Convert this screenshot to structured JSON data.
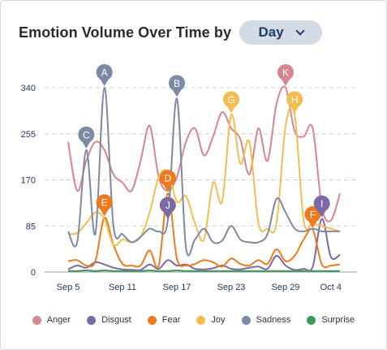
{
  "header": {
    "title": "Emotion Volume Over Time by",
    "dropdown_value": "Day"
  },
  "chart_data": {
    "type": "line",
    "xlabel": "",
    "ylabel": "",
    "x_start": "Sep 5",
    "x_end": "Oct 5",
    "x_ticks": [
      "Sep 5",
      "Sep 11",
      "Sep 17",
      "Sep 23",
      "Sep 29",
      "Oct 4"
    ],
    "y_ticks": [
      0,
      85,
      170,
      255,
      340
    ],
    "ylim": [
      0,
      340
    ],
    "grid": "horizontal dashed",
    "legend_position": "bottom",
    "x": [
      "Sep 5",
      "Sep 6",
      "Sep 7",
      "Sep 8",
      "Sep 9",
      "Sep 10",
      "Sep 11",
      "Sep 12",
      "Sep 13",
      "Sep 14",
      "Sep 15",
      "Sep 16",
      "Sep 17",
      "Sep 18",
      "Sep 19",
      "Sep 20",
      "Sep 21",
      "Sep 22",
      "Sep 23",
      "Sep 24",
      "Sep 25",
      "Sep 26",
      "Sep 27",
      "Sep 28",
      "Sep 29",
      "Sep 30",
      "Oct 1",
      "Oct 2",
      "Oct 3",
      "Oct 4",
      "Oct 5"
    ],
    "series": [
      {
        "name": "Anger",
        "color": "#d5868f",
        "values": [
          240,
          150,
          205,
          240,
          225,
          180,
          165,
          150,
          205,
          270,
          175,
          150,
          175,
          240,
          265,
          215,
          250,
          295,
          265,
          245,
          180,
          265,
          205,
          310,
          340,
          260,
          250,
          265,
          120,
          95,
          145
        ]
      },
      {
        "name": "Disgust",
        "color": "#7b68a6",
        "values": [
          5,
          12,
          8,
          18,
          14,
          8,
          5,
          4,
          4,
          14,
          6,
          22,
          12,
          14,
          6,
          5,
          7,
          12,
          6,
          5,
          8,
          10,
          6,
          30,
          12,
          4,
          6,
          10,
          98,
          28,
          32
        ]
      },
      {
        "name": "Fear",
        "color": "#ee7a1c",
        "values": [
          20,
          22,
          12,
          20,
          100,
          50,
          15,
          12,
          12,
          40,
          12,
          145,
          25,
          12,
          15,
          22,
          18,
          10,
          25,
          15,
          12,
          22,
          15,
          42,
          20,
          30,
          60,
          78,
          14,
          12,
          14
        ]
      },
      {
        "name": "Joy",
        "color": "#f5bd4f",
        "values": [
          70,
          72,
          90,
          110,
          98,
          50,
          60,
          55,
          65,
          110,
          175,
          185,
          130,
          140,
          90,
          60,
          165,
          130,
          290,
          200,
          240,
          90,
          80,
          90,
          270,
          290,
          95,
          90,
          85,
          80,
          75
        ]
      },
      {
        "name": "Sadness",
        "color": "#7c8aa4",
        "values": [
          75,
          55,
          225,
          70,
          340,
          85,
          70,
          55,
          65,
          80,
          75,
          95,
          320,
          45,
          60,
          80,
          55,
          58,
          85,
          60,
          55,
          55,
          70,
          135,
          110,
          80,
          75,
          80,
          75,
          75,
          75
        ]
      },
      {
        "name": "Surprise",
        "color": "#3e9a5c",
        "values": [
          2,
          2,
          3,
          2,
          3,
          2,
          2,
          2,
          2,
          3,
          2,
          2,
          3,
          2,
          2,
          2,
          2,
          2,
          2,
          2,
          2,
          2,
          2,
          2,
          2,
          2,
          2,
          2,
          2,
          2,
          2
        ]
      }
    ],
    "annotations": [
      {
        "label": "A",
        "x": "Sep 9",
        "y": 340,
        "color": "#7c8aa4"
      },
      {
        "label": "B",
        "x": "Sep 17",
        "y": 320,
        "color": "#7c8aa4"
      },
      {
        "label": "C",
        "x": "Sep 7",
        "y": 225,
        "color": "#7c8aa4"
      },
      {
        "label": "D",
        "x": "Sep 16",
        "y": 145,
        "color": "#ee7a1c"
      },
      {
        "label": "E",
        "x": "Sep 9",
        "y": 100,
        "color": "#ee7a1c"
      },
      {
        "label": "F",
        "x": "Oct 2",
        "y": 78,
        "color": "#ee7a1c"
      },
      {
        "label": "G",
        "x": "Sep 23",
        "y": 290,
        "color": "#f5bd4f"
      },
      {
        "label": "H",
        "x": "Sep 30",
        "y": 290,
        "color": "#f5bd4f"
      },
      {
        "label": "I",
        "x": "Oct 3",
        "y": 98,
        "color": "#7b68a6"
      },
      {
        "label": "J",
        "x": "Sep 16",
        "y": 95,
        "color": "#7b68a6"
      },
      {
        "label": "K",
        "x": "Sep 29",
        "y": 340,
        "color": "#d5868f"
      }
    ]
  }
}
